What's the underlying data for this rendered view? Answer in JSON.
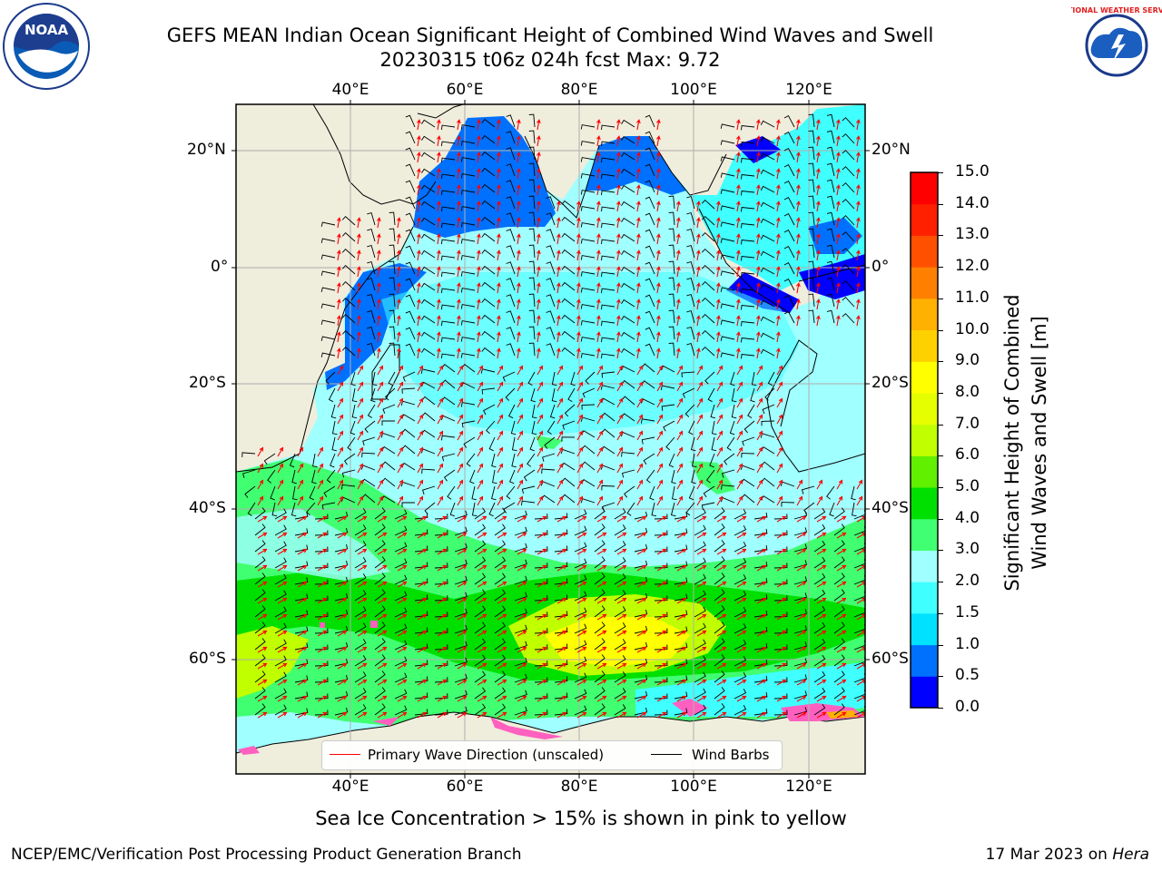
{
  "title_line1": "GEFS MEAN Indian Ocean Significant Height of Combined Wind Waves and Swell",
  "title_line2": "20230315 t06z 024h fcst   Max: 9.72",
  "lon_ticks": [
    "40°E",
    "60°E",
    "80°E",
    "100°E",
    "120°E"
  ],
  "lat_ticks": [
    "20°N",
    "0°",
    "20°S",
    "40°S",
    "60°S"
  ],
  "colorbar": {
    "label_line1": "Significant Height of Combined",
    "label_line2": "Wind Waves and Swell [m]",
    "ticks": [
      "0.0",
      "0.5",
      "1.0",
      "1.5",
      "2.0",
      "3.0",
      "4.0",
      "5.0",
      "6.0",
      "7.0",
      "8.0",
      "9.0",
      "10.0",
      "11.0",
      "12.0",
      "13.0",
      "14.0",
      "15.0"
    ],
    "colors": [
      "#0000ff",
      "#0070ff",
      "#00e0ff",
      "#40ffff",
      "#a0ffff",
      "#40ff70",
      "#00e000",
      "#60f000",
      "#c0ff00",
      "#e6ff00",
      "#ffff00",
      "#ffd000",
      "#ffb000",
      "#ff8000",
      "#ff5000",
      "#ff2000",
      "#ff0000"
    ]
  },
  "legend": {
    "wave_label": "Primary Wave Direction (unscaled)",
    "wave_color": "#ff0000",
    "wind_label": "Wind Barbs",
    "wind_color": "#000000"
  },
  "footnote": "Sea Ice Concentration > 15% is shown in pink to yellow",
  "credit_left": "NCEP/EMC/Verification Post Processing Product Generation Branch",
  "credit_date": "17 Mar 2023 on ",
  "credit_host": "Hera",
  "colors": {
    "land": "#efeddc",
    "ocean_low": "#a0ffff",
    "sea_ice": "#ff60c0"
  },
  "logos": {
    "noaa_text": "NOAA",
    "nws_text": "NATIONAL WEATHER SERVICE"
  }
}
